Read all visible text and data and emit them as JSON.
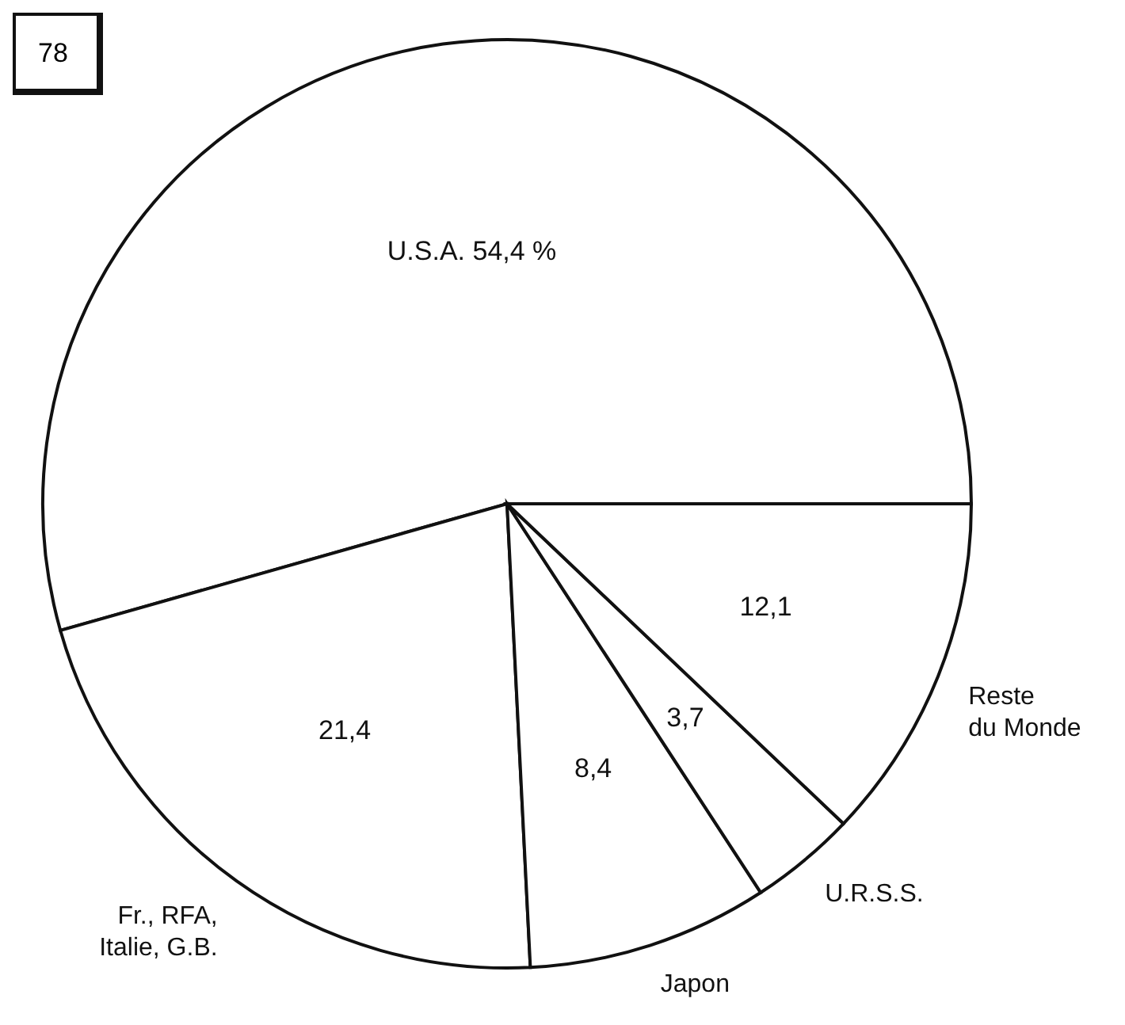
{
  "chart_data": {
    "type": "pie",
    "title": "78",
    "categories": [
      null,
      "Fr., RFA, Italie, G.B.",
      "Japon",
      "U.R.S.S.",
      "Reste du Monde"
    ],
    "values": [
      54.4,
      21.4,
      8.4,
      3.7,
      12.1
    ],
    "value_labels": [
      "U.S.A. 54,4 %",
      "21,4",
      "8,4",
      "3,7",
      "12,1"
    ],
    "colors": [
      "#ffffff",
      "#ffffff",
      "#ffffff",
      "#ffffff",
      "#ffffff"
    ],
    "legend": false
  }
}
